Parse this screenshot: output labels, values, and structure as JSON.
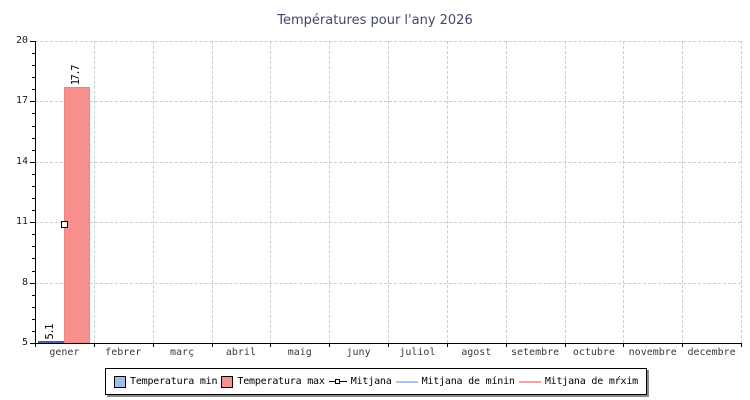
{
  "chart_data": {
    "type": "bar",
    "title": "Températures pour l'any 2026",
    "categories": [
      "gener",
      "febrer",
      "març",
      "abril",
      "maig",
      "juny",
      "juliol",
      "agost",
      "setembre",
      "octubre",
      "novembre",
      "decembre"
    ],
    "ylim": [
      5,
      20
    ],
    "yticks": [
      5,
      8,
      11,
      14,
      17,
      20
    ],
    "y_minor_step": 0.6,
    "grid": {
      "style": "dashed",
      "color": "#cccccc"
    },
    "legend_position": "bottom",
    "series": [
      {
        "name": "Temperatura min",
        "kind": "bar",
        "fill": "#aec6f3",
        "border": "#45619e",
        "values": [
          5.1,
          null,
          null,
          null,
          null,
          null,
          null,
          null,
          null,
          null,
          null,
          null
        ]
      },
      {
        "name": "Temperatura max",
        "kind": "bar",
        "fill": "#f8918e",
        "border": "#f0827f",
        "values": [
          17.7,
          null,
          null,
          null,
          null,
          null,
          null,
          null,
          null,
          null,
          null,
          null
        ]
      },
      {
        "name": "Mitjana",
        "kind": "point",
        "marker": "square",
        "marker_fill": "#ffffff",
        "marker_border": "#000000",
        "values": [
          10.9,
          null,
          null,
          null,
          null,
          null,
          null,
          null,
          null,
          null,
          null,
          null
        ]
      },
      {
        "name": "Mitjana de mínin",
        "kind": "line",
        "color": "#a9c6e8",
        "values": []
      },
      {
        "name": "Mitjana de mŕxim",
        "kind": "line",
        "color": "#f6a19e",
        "values": []
      }
    ],
    "bar_value_labels": [
      "5.1",
      "17.7"
    ]
  }
}
